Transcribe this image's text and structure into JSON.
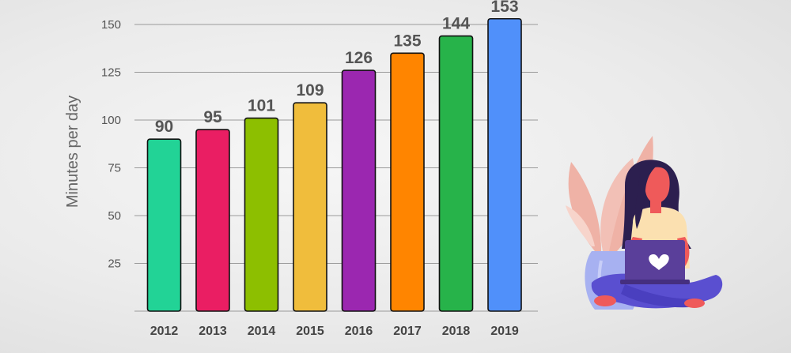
{
  "chart_data": {
    "type": "bar",
    "title": "",
    "xlabel": "",
    "ylabel": "Minutes per day",
    "categories": [
      "2012",
      "2013",
      "2014",
      "2015",
      "2016",
      "2017",
      "2018",
      "2019"
    ],
    "values": [
      90,
      95,
      101,
      109,
      126,
      135,
      144,
      153
    ],
    "yticks": [
      25,
      50,
      75,
      100,
      125,
      150
    ],
    "ylim": [
      0,
      160
    ],
    "grid": true,
    "legend": "none",
    "colors": [
      "#22d396",
      "#ea1e63",
      "#8dbf00",
      "#f0bd3c",
      "#9b27b0",
      "#ff8500",
      "#27b34a",
      "#5090fa"
    ]
  },
  "illustration": {
    "icon": "woman-with-laptop-illustration",
    "colors": {
      "hair": "#2c1f4f",
      "skin": "#ef5a5a",
      "top": "#fbe0b0",
      "laptop": "#5a3f9a",
      "legs": "#5a4fd0",
      "leaves": "#efb2a6",
      "vase": "#a7b1f1"
    }
  }
}
